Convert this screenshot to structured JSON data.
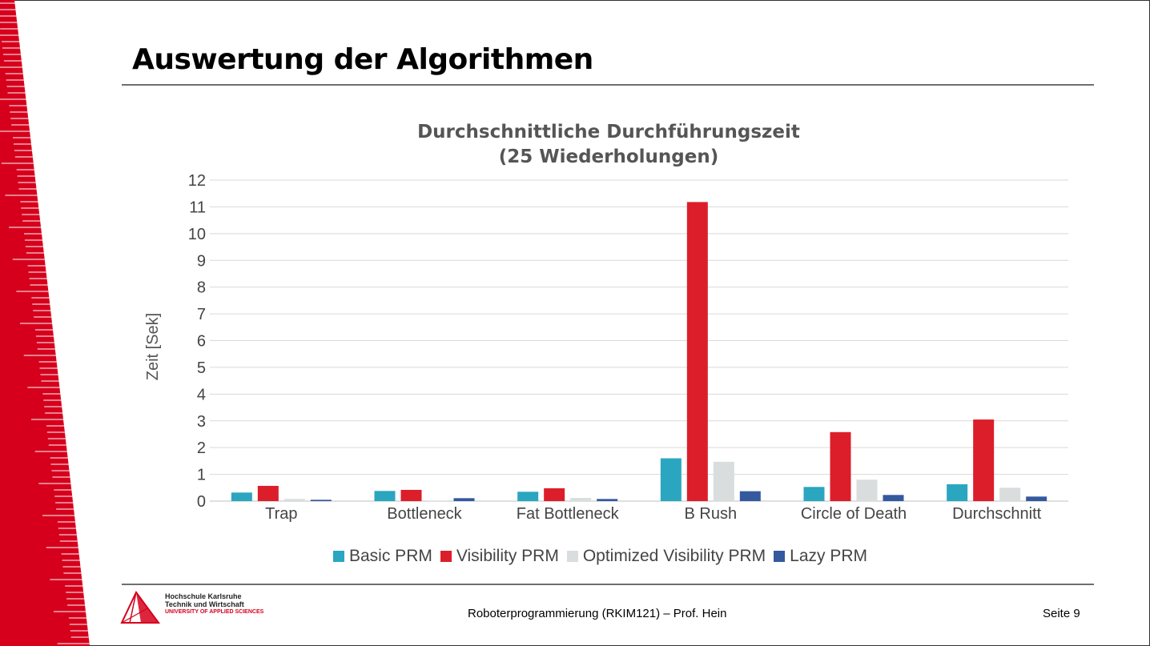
{
  "slide": {
    "title": "Auswertung der Algorithmen",
    "footer": "Roboterprogrammierung (RKIM121) – Prof. Hein",
    "page_label": "Seite  9",
    "logo": {
      "line1": "Hochschule Karlsruhe",
      "line2": "Technik und Wirtschaft",
      "line3": "UNIVERSITY OF APPLIED SCIENCES"
    }
  },
  "colors": {
    "accent_red": "#d6001c",
    "basic": "#2aa6c0",
    "visibility": "#dc1e2a",
    "optimized": "#d9dddd",
    "lazy": "#34599e"
  },
  "chart_data": {
    "type": "bar",
    "title_line1": "Durchschnittliche Durchführungszeit",
    "title_line2": "(25 Wiederholungen)",
    "xlabel": "",
    "ylabel": "Zeit [Sek]",
    "ylim": [
      0,
      12
    ],
    "yticks": [
      0,
      1,
      2,
      3,
      4,
      5,
      6,
      7,
      8,
      9,
      10,
      11,
      12
    ],
    "grid": true,
    "legend_position": "bottom",
    "categories": [
      "Trap",
      "Bottleneck",
      "Fat Bottleneck",
      "B Rush",
      "Circle of Death",
      "Durchschnitt"
    ],
    "series": [
      {
        "name": "Basic PRM",
        "color": "#2aa6c0",
        "values": [
          0.32,
          0.38,
          0.35,
          1.6,
          0.53,
          0.63
        ]
      },
      {
        "name": "Visibility PRM",
        "color": "#dc1e2a",
        "values": [
          0.57,
          0.42,
          0.48,
          11.18,
          2.58,
          3.05
        ]
      },
      {
        "name": "Optimized Visibility PRM",
        "color": "#d9dddd",
        "values": [
          0.08,
          0.02,
          0.12,
          1.47,
          0.8,
          0.5
        ]
      },
      {
        "name": "Lazy PRM",
        "color": "#34599e",
        "values": [
          0.05,
          0.11,
          0.08,
          0.37,
          0.23,
          0.17
        ]
      }
    ]
  }
}
